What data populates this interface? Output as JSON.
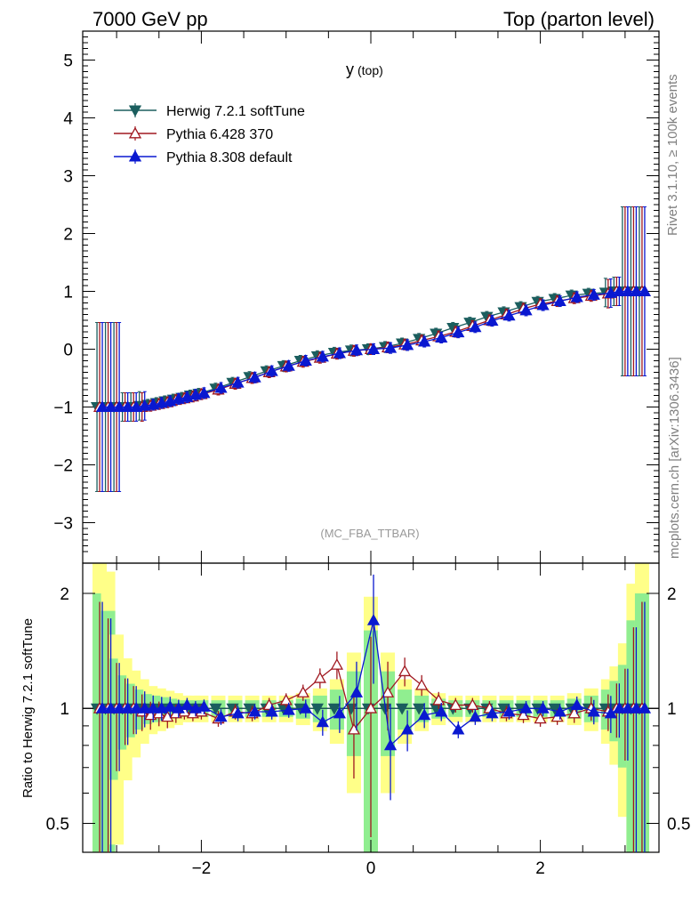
{
  "header": {
    "left": "7000 GeV pp",
    "right": "Top (parton level)"
  },
  "side_text": {
    "rivet": "Rivet 3.1.10, ≥ 100k events",
    "mcplots": "mcplots.cern.ch [arXiv:1306.3436]"
  },
  "chart_data": [
    {
      "type": "line",
      "title": "y",
      "title_sub": "(top)",
      "watermark": "(MC_FBA_TTBAR)",
      "xlim": [
        -3.4,
        3.4
      ],
      "ylim": [
        -3.7,
        5.5
      ],
      "x_ticks": [
        -2,
        0,
        2
      ],
      "y_ticks": [
        -3,
        -2,
        -1,
        0,
        1,
        2,
        3,
        4,
        5
      ],
      "legend_position": "top-left",
      "x": [
        -3.2,
        -3.1,
        -3.0,
        -2.9,
        -2.8,
        -2.7,
        -2.6,
        -2.5,
        -2.4,
        -2.3,
        -2.2,
        -2.1,
        -2.0,
        -1.8,
        -1.6,
        -1.4,
        -1.2,
        -1.0,
        -0.8,
        -0.6,
        -0.4,
        -0.2,
        0.0,
        0.2,
        0.4,
        0.6,
        0.8,
        1.0,
        1.2,
        1.4,
        1.6,
        1.8,
        2.0,
        2.2,
        2.4,
        2.6,
        2.8,
        2.9,
        3.0,
        3.1,
        3.2
      ],
      "series": [
        {
          "name": "Herwig 7.2.1 softTune",
          "color": "#1b5e5e",
          "marker": "triangle-down",
          "values": [
            -1.0,
            -1.0,
            -1.0,
            -1.0,
            -1.0,
            -0.98,
            -0.96,
            -0.93,
            -0.9,
            -0.87,
            -0.84,
            -0.8,
            -0.77,
            -0.68,
            -0.58,
            -0.48,
            -0.38,
            -0.29,
            -0.2,
            -0.12,
            -0.06,
            -0.02,
            0.0,
            0.04,
            0.1,
            0.18,
            0.27,
            0.37,
            0.46,
            0.56,
            0.64,
            0.73,
            0.82,
            0.87,
            0.93,
            0.96,
            0.98,
            1.0,
            1.0,
            1.0,
            1.0
          ]
        },
        {
          "name": "Pythia 6.428 370",
          "color": "#a01820",
          "marker": "triangle-up-open",
          "values": [
            -1.0,
            -1.0,
            -1.0,
            -1.0,
            -1.0,
            -1.0,
            -0.98,
            -0.95,
            -0.92,
            -0.88,
            -0.85,
            -0.82,
            -0.78,
            -0.7,
            -0.6,
            -0.5,
            -0.4,
            -0.3,
            -0.22,
            -0.15,
            -0.08,
            -0.03,
            0.0,
            0.03,
            0.08,
            0.15,
            0.22,
            0.3,
            0.4,
            0.5,
            0.6,
            0.7,
            0.78,
            0.83,
            0.88,
            0.92,
            0.96,
            1.0,
            1.0,
            1.0,
            1.0
          ]
        },
        {
          "name": "Pythia 8.308 default",
          "color": "#0a18d0",
          "marker": "triangle-up",
          "values": [
            -1.0,
            -1.0,
            -1.0,
            -1.0,
            -1.0,
            -0.98,
            -0.96,
            -0.93,
            -0.9,
            -0.86,
            -0.83,
            -0.79,
            -0.76,
            -0.67,
            -0.58,
            -0.49,
            -0.38,
            -0.29,
            -0.2,
            -0.13,
            -0.07,
            -0.02,
            0.0,
            0.02,
            0.07,
            0.13,
            0.2,
            0.29,
            0.38,
            0.49,
            0.58,
            0.67,
            0.76,
            0.83,
            0.9,
            0.94,
            0.97,
            1.0,
            1.0,
            1.0,
            1.0
          ]
        }
      ]
    },
    {
      "type": "line",
      "ylabel": "Ratio to Herwig 7.2.1 softTune",
      "xlim": [
        -3.4,
        3.4
      ],
      "ylim": [
        0.42,
        2.4
      ],
      "log_y": true,
      "x_ticks": [
        -2,
        0,
        2
      ],
      "y_ticks": [
        0.5,
        1,
        2
      ],
      "reference_line": 1,
      "x": [
        -3.2,
        -3.1,
        -3.0,
        -2.9,
        -2.8,
        -2.7,
        -2.6,
        -2.5,
        -2.4,
        -2.3,
        -2.2,
        -2.1,
        -2.0,
        -1.8,
        -1.6,
        -1.4,
        -1.2,
        -1.0,
        -0.8,
        -0.6,
        -0.4,
        -0.2,
        0.0,
        0.2,
        0.4,
        0.6,
        0.8,
        1.0,
        1.2,
        1.4,
        1.6,
        1.8,
        2.0,
        2.2,
        2.4,
        2.6,
        2.8,
        2.9,
        3.0,
        3.1,
        3.2
      ],
      "band_outer_color": "#ffff88",
      "band_inner_color": "#90ee90",
      "band_inner_halfwidth": [
        1.0,
        0.8,
        0.35,
        0.22,
        0.16,
        0.12,
        0.09,
        0.08,
        0.07,
        0.06,
        0.05,
        0.05,
        0.05,
        0.05,
        0.05,
        0.05,
        0.05,
        0.05,
        0.06,
        0.08,
        0.12,
        0.25,
        0.6,
        0.25,
        0.12,
        0.08,
        0.06,
        0.05,
        0.05,
        0.05,
        0.05,
        0.05,
        0.05,
        0.05,
        0.06,
        0.08,
        0.12,
        0.18,
        0.3,
        0.7,
        1.0
      ],
      "series": [
        {
          "name": "Herwig 7.2.1 softTune",
          "color": "#1b5e5e",
          "values": [
            1.0,
            1.0,
            1.0,
            1.0,
            1.0,
            1.0,
            1.0,
            1.0,
            1.0,
            1.0,
            1.0,
            1.0,
            1.0,
            1.0,
            1.0,
            1.0,
            1.0,
            1.0,
            1.0,
            1.0,
            1.0,
            1.0,
            1.0,
            1.0,
            1.0,
            1.0,
            1.0,
            1.0,
            1.0,
            1.0,
            1.0,
            1.0,
            1.0,
            1.0,
            1.0,
            1.0,
            1.0,
            1.0,
            1.0,
            1.0,
            1.0
          ]
        },
        {
          "name": "Pythia 6.428 370",
          "color": "#a01820",
          "values": [
            1.0,
            1.0,
            1.0,
            1.0,
            1.0,
            0.98,
            0.96,
            0.97,
            0.95,
            0.97,
            0.98,
            0.97,
            0.98,
            0.94,
            0.98,
            0.97,
            1.02,
            1.05,
            1.1,
            1.2,
            1.3,
            0.88,
            1.0,
            1.1,
            1.25,
            1.15,
            1.05,
            1.02,
            1.02,
            1.0,
            0.97,
            0.96,
            0.94,
            0.95,
            0.97,
            1.0,
            0.98,
            1.0,
            1.0,
            1.0,
            1.0
          ]
        },
        {
          "name": "Pythia 8.308 default",
          "color": "#0a18d0",
          "values": [
            1.0,
            1.0,
            1.0,
            1.0,
            1.0,
            1.0,
            1.0,
            1.0,
            1.01,
            1.0,
            1.02,
            1.0,
            1.01,
            0.95,
            0.97,
            0.98,
            0.98,
            0.99,
            1.0,
            0.92,
            0.97,
            1.1,
            1.7,
            0.8,
            0.88,
            0.96,
            0.98,
            0.88,
            0.95,
            0.97,
            0.98,
            1.0,
            1.0,
            0.98,
            1.02,
            0.98,
            0.97,
            1.0,
            1.0,
            1.0,
            1.0
          ]
        }
      ]
    }
  ]
}
